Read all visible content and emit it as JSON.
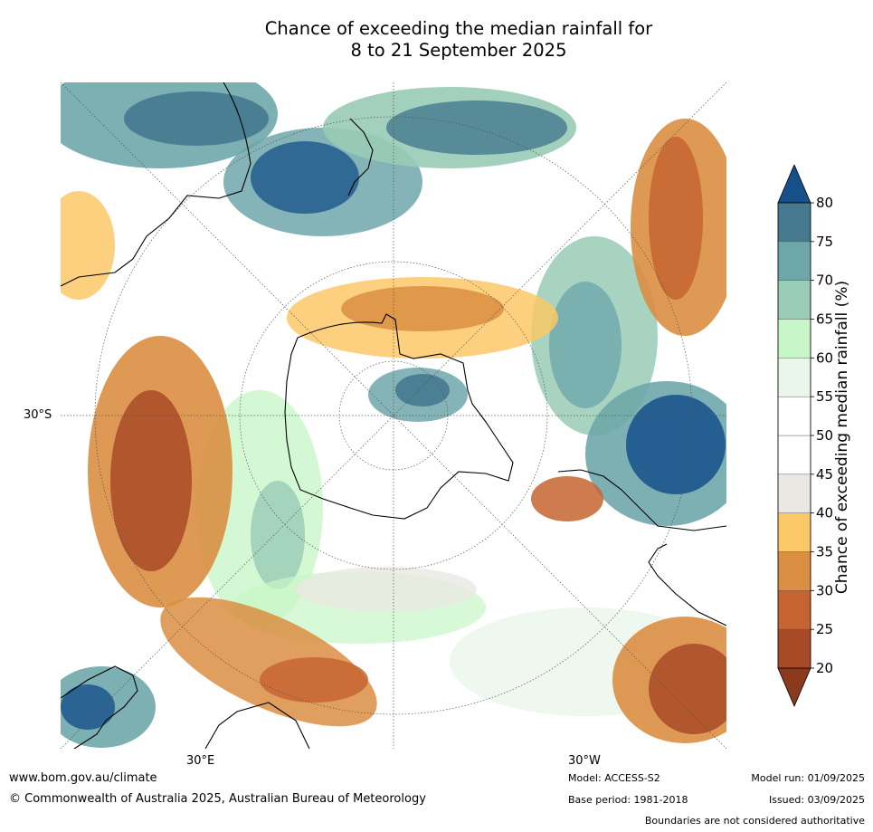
{
  "title": {
    "line1": "Chance of exceeding the median rainfall for",
    "line2": "8 to 21 September 2025"
  },
  "axes": {
    "lat_label": "30°S",
    "lon_left": "30°E",
    "lon_right": "30°W"
  },
  "colorbar": {
    "label": "Chance of exceeding median rainfall (%)",
    "ticks": [
      "20",
      "25",
      "30",
      "35",
      "40",
      "45",
      "50",
      "55",
      "60",
      "65",
      "70",
      "75",
      "80"
    ],
    "colors": [
      "#8c3a1e",
      "#a94a27",
      "#c56431",
      "#da8e42",
      "#fbc867",
      "#ebe8e3",
      "#ffffff",
      "#ffffff",
      "#eaf6ea",
      "#c8f6c8",
      "#99cbb6",
      "#6ea7aa",
      "#45798f",
      "#16508a"
    ]
  },
  "map_colors": {
    "ocean_base": "#ffffff",
    "coast": "#000000",
    "graticule": "#555555"
  },
  "footer": {
    "website": "www.bom.gov.au/climate",
    "copyright": "© Commonwealth of Australia 2025, Australian Bureau of Meteorology",
    "model": "Model: ACCESS-S2",
    "base_period": "Base period: 1981-2018",
    "model_run": "Model run: 01/09/2025",
    "issued": "Issued: 03/09/2025",
    "disclaimer": "Boundaries are not considered authoritative"
  }
}
